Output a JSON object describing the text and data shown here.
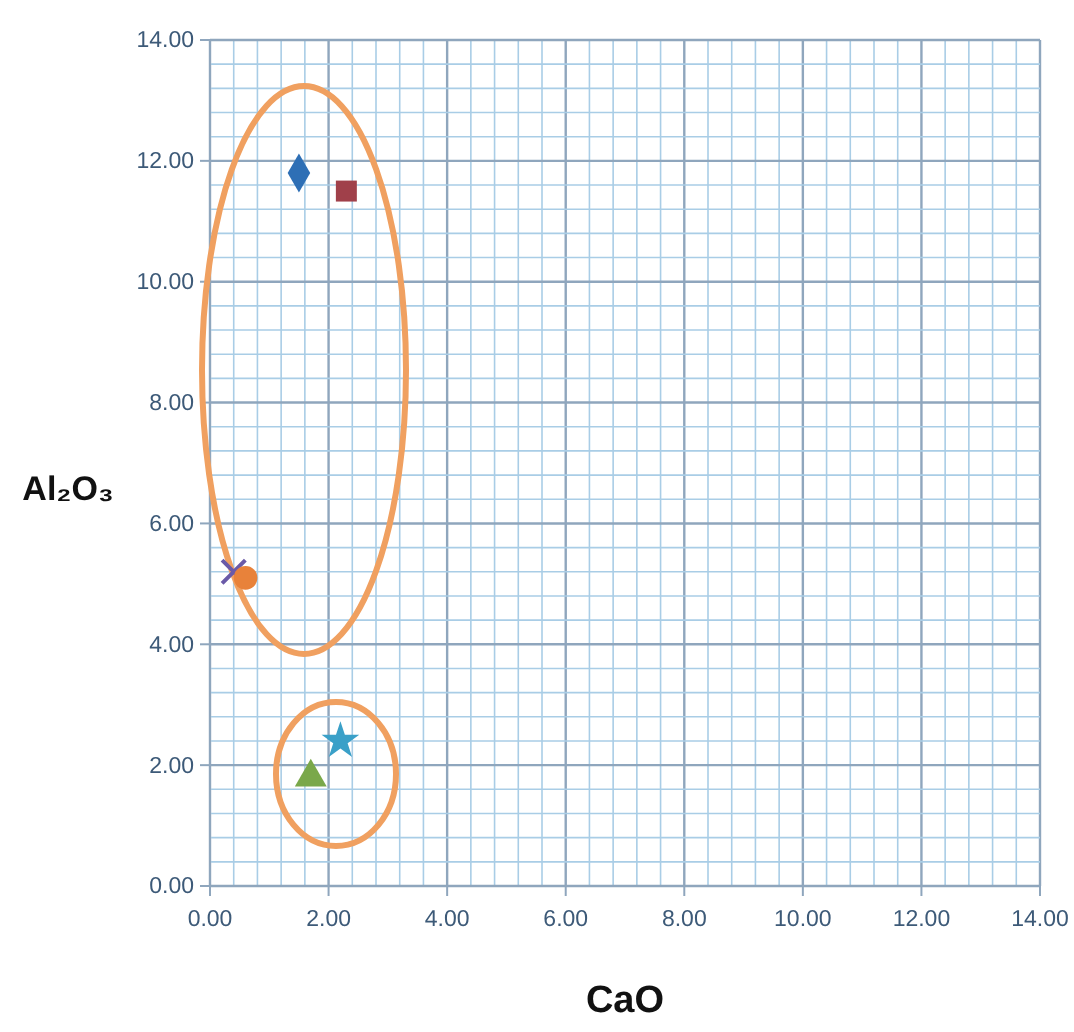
{
  "chart_data": {
    "type": "scatter",
    "xlabel": "CaO",
    "ylabel": "Al₂O₃",
    "xlim": [
      0,
      14
    ],
    "ylim": [
      0,
      14
    ],
    "xticks": [
      {
        "value": 0,
        "label": "0.00"
      },
      {
        "value": 0.4,
        "label": null
      },
      {
        "value": 0.8,
        "label": null
      },
      {
        "value": 1.2,
        "label": null
      },
      {
        "value": 1.6,
        "label": null
      },
      {
        "value": 2,
        "label": "2.00"
      },
      {
        "value": 2.4,
        "label": null
      },
      {
        "value": 2.8,
        "label": null
      },
      {
        "value": 3.2,
        "label": null
      },
      {
        "value": 3.6,
        "label": null
      },
      {
        "value": 4,
        "label": "4.00"
      },
      {
        "value": 4.4,
        "label": null
      },
      {
        "value": 4.8,
        "label": null
      },
      {
        "value": 5.2,
        "label": null
      },
      {
        "value": 5.6,
        "label": null
      },
      {
        "value": 6,
        "label": "6.00"
      },
      {
        "value": 6.4,
        "label": null
      },
      {
        "value": 6.8,
        "label": null
      },
      {
        "value": 7.2,
        "label": null
      },
      {
        "value": 7.6,
        "label": null
      },
      {
        "value": 8,
        "label": "8.00"
      },
      {
        "value": 8.4,
        "label": null
      },
      {
        "value": 8.8,
        "label": null
      },
      {
        "value": 9.2,
        "label": null
      },
      {
        "value": 9.6,
        "label": null
      },
      {
        "value": 10,
        "label": "10.00"
      },
      {
        "value": 10.4,
        "label": null
      },
      {
        "value": 10.8,
        "label": null
      },
      {
        "value": 11.2,
        "label": null
      },
      {
        "value": 11.6,
        "label": null
      },
      {
        "value": 12,
        "label": "12.00"
      },
      {
        "value": 12.4,
        "label": null
      },
      {
        "value": 12.8,
        "label": null
      },
      {
        "value": 13.2,
        "label": null
      },
      {
        "value": 13.6,
        "label": null
      },
      {
        "value": 14,
        "label": "14.00"
      }
    ],
    "yticks": [
      {
        "value": 0,
        "label": "0.00"
      },
      {
        "value": 0.4,
        "label": null
      },
      {
        "value": 0.8,
        "label": null
      },
      {
        "value": 1.2,
        "label": null
      },
      {
        "value": 1.6,
        "label": null
      },
      {
        "value": 2,
        "label": "2.00"
      },
      {
        "value": 2.4,
        "label": null
      },
      {
        "value": 2.8,
        "label": null
      },
      {
        "value": 3.2,
        "label": null
      },
      {
        "value": 3.6,
        "label": null
      },
      {
        "value": 4,
        "label": "4.00"
      },
      {
        "value": 4.4,
        "label": null
      },
      {
        "value": 4.8,
        "label": null
      },
      {
        "value": 5.2,
        "label": null
      },
      {
        "value": 5.6,
        "label": null
      },
      {
        "value": 6,
        "label": "6.00"
      },
      {
        "value": 6.4,
        "label": null
      },
      {
        "value": 6.8,
        "label": null
      },
      {
        "value": 7.2,
        "label": null
      },
      {
        "value": 7.6,
        "label": null
      },
      {
        "value": 8,
        "label": "8.00"
      },
      {
        "value": 8.4,
        "label": null
      },
      {
        "value": 8.8,
        "label": null
      },
      {
        "value": 9.2,
        "label": null
      },
      {
        "value": 9.6,
        "label": null
      },
      {
        "value": 10,
        "label": "10.00"
      },
      {
        "value": 10.4,
        "label": null
      },
      {
        "value": 10.8,
        "label": null
      },
      {
        "value": 11.2,
        "label": null
      },
      {
        "value": 11.6,
        "label": null
      },
      {
        "value": 12,
        "label": "12.00"
      },
      {
        "value": 12.4,
        "label": null
      },
      {
        "value": 12.8,
        "label": null
      },
      {
        "value": 13.2,
        "label": null
      },
      {
        "value": 13.6,
        "label": null
      },
      {
        "value": 14,
        "label": "14.00"
      }
    ],
    "grid": true,
    "series": [
      {
        "color": "#2e6fb5",
        "marker": "diamond",
        "x": [
          1.5
        ],
        "values": [
          11.8
        ]
      },
      {
        "color": "#a0404a",
        "marker": "square",
        "x": [
          2.3
        ],
        "values": [
          11.5
        ]
      },
      {
        "color": "#6a5aa8",
        "marker": "cross",
        "x": [
          0.4
        ],
        "values": [
          5.2
        ]
      },
      {
        "color": "#e8823a",
        "marker": "circle",
        "x": [
          0.6
        ],
        "values": [
          5.1
        ]
      },
      {
        "color": "#7aa84a",
        "marker": "triangle",
        "x": [
          1.7
        ],
        "values": [
          1.8
        ]
      },
      {
        "color": "#3aa0c8",
        "marker": "star",
        "x": [
          2.2
        ],
        "values": [
          2.4
        ]
      }
    ]
  }
}
